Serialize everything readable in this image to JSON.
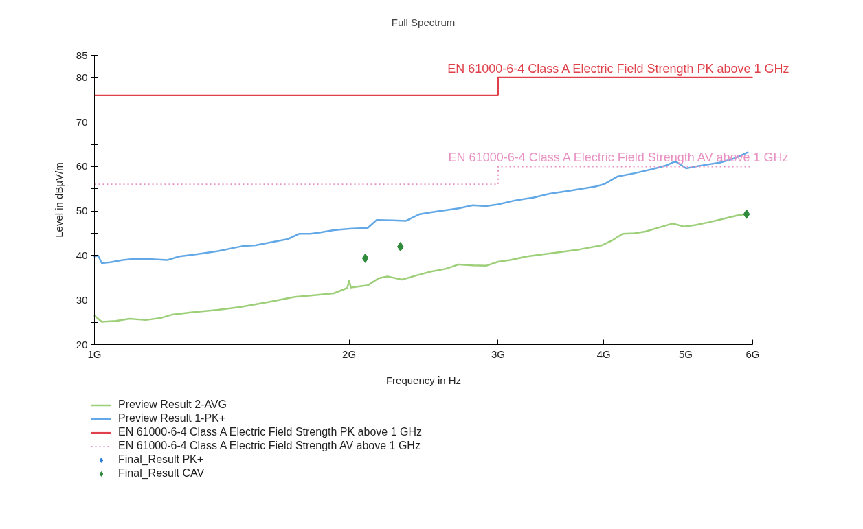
{
  "chart_data": {
    "type": "line",
    "title": "Full Spectrum",
    "xlabel": "Frequency in Hz",
    "ylabel": "Level in dBµV/m",
    "log": "x",
    "grid": false,
    "legend": "bottom",
    "xlim": [
      1,
      6
    ],
    "xticks": [
      {
        "value": 1,
        "label": "1G"
      },
      {
        "value": 2,
        "label": "2G"
      },
      {
        "value": 3,
        "label": "3G"
      },
      {
        "value": 4,
        "label": "4G"
      },
      {
        "value": 5,
        "label": "5G"
      },
      {
        "value": 6,
        "label": "6G"
      }
    ],
    "ylim": [
      20,
      85
    ],
    "yticks": [
      20,
      {
        "value": 25,
        "label": null
      },
      30,
      {
        "value": 35,
        "label": null
      },
      40,
      {
        "value": 45,
        "label": null
      },
      50,
      {
        "value": 55,
        "label": null
      },
      60,
      {
        "value": 65,
        "label": null
      },
      70,
      {
        "value": 75,
        "label": null
      },
      80,
      85
    ],
    "series": [
      {
        "name": "Preview Result 2-AVG",
        "color": "#9ccf78",
        "x": [
          1.0,
          1.02,
          1.06,
          1.1,
          1.15,
          1.2,
          1.234,
          1.3,
          1.4,
          1.486,
          1.6,
          1.725,
          1.8,
          1.918,
          1.99,
          2.0,
          2.01,
          2.104,
          2.168,
          2.22,
          2.309,
          2.4,
          2.5,
          2.6,
          2.696,
          2.8,
          2.903,
          3.0,
          3.1,
          3.245,
          3.4,
          3.563,
          3.75,
          3.98,
          4.1,
          4.211,
          4.35,
          4.478,
          4.65,
          4.823,
          4.98,
          5.15,
          5.33,
          5.55,
          5.745,
          5.89
        ],
        "values": [
          26.5,
          25.1,
          25.3,
          25.8,
          25.5,
          26.0,
          26.7,
          27.2,
          27.8,
          28.4,
          29.5,
          30.7,
          31.0,
          31.5,
          32.7,
          34.3,
          32.8,
          33.3,
          34.9,
          35.3,
          34.6,
          35.5,
          36.4,
          37.0,
          38.0,
          37.8,
          37.7,
          38.6,
          39.0,
          39.8,
          40.3,
          40.8,
          41.4,
          42.3,
          43.5,
          44.9,
          45.0,
          45.4,
          46.3,
          47.2,
          46.5,
          46.9,
          47.5,
          48.3,
          49.0,
          49.3
        ]
      },
      {
        "name": "Preview Result 1-PK+",
        "color": "#62a8e6",
        "x": [
          1.0,
          1.01,
          1.02,
          1.044,
          1.08,
          1.12,
          1.167,
          1.22,
          1.26,
          1.322,
          1.4,
          1.494,
          1.55,
          1.6,
          1.693,
          1.747,
          1.8,
          1.85,
          1.918,
          2.0,
          2.104,
          2.156,
          2.25,
          2.335,
          2.424,
          2.516,
          2.6,
          2.696,
          2.8,
          2.903,
          3.0,
          3.145,
          3.3,
          3.451,
          3.65,
          3.91,
          4.0,
          4.157,
          4.35,
          4.563,
          4.75,
          4.86,
          5.006,
          5.2,
          5.495,
          5.7,
          5.92
        ],
        "values": [
          39.8,
          40.0,
          38.3,
          38.5,
          39.0,
          39.3,
          39.2,
          39.0,
          39.8,
          40.3,
          41.0,
          42.1,
          42.3,
          42.8,
          43.7,
          44.9,
          44.9,
          45.2,
          45.7,
          46.0,
          46.2,
          48.0,
          47.9,
          47.8,
          49.3,
          49.8,
          50.2,
          50.6,
          51.3,
          51.1,
          51.5,
          52.4,
          53.0,
          53.9,
          54.6,
          55.5,
          56.0,
          57.8,
          58.5,
          59.4,
          60.3,
          61.2,
          59.6,
          60.2,
          60.9,
          61.8,
          63.2
        ]
      },
      {
        "name": "EN 61000-6-4 Class A Electric Field Strength PK above 1 GHz",
        "type": "step",
        "color": "#e0404a",
        "x": [
          1,
          3,
          6
        ],
        "values": [
          76,
          80,
          80
        ]
      },
      {
        "name": "EN 61000-6-4 Class A Electric Field Strength AV above 1 GHz",
        "type": "step",
        "color": "#e890c2",
        "line_style": "dotted",
        "x": [
          1,
          3,
          6
        ],
        "values": [
          56,
          60,
          60
        ]
      },
      {
        "name": "Final_Result PK+",
        "type": "scatter",
        "marker": "diamond",
        "color": "#2a7fd4"
      },
      {
        "name": "Final_Result CAV",
        "type": "scatter",
        "marker": "diamond",
        "color": "#2e8b3a",
        "x": [
          2.09,
          2.3,
          5.9
        ],
        "values": [
          39.4,
          42.0,
          49.3
        ]
      }
    ]
  }
}
